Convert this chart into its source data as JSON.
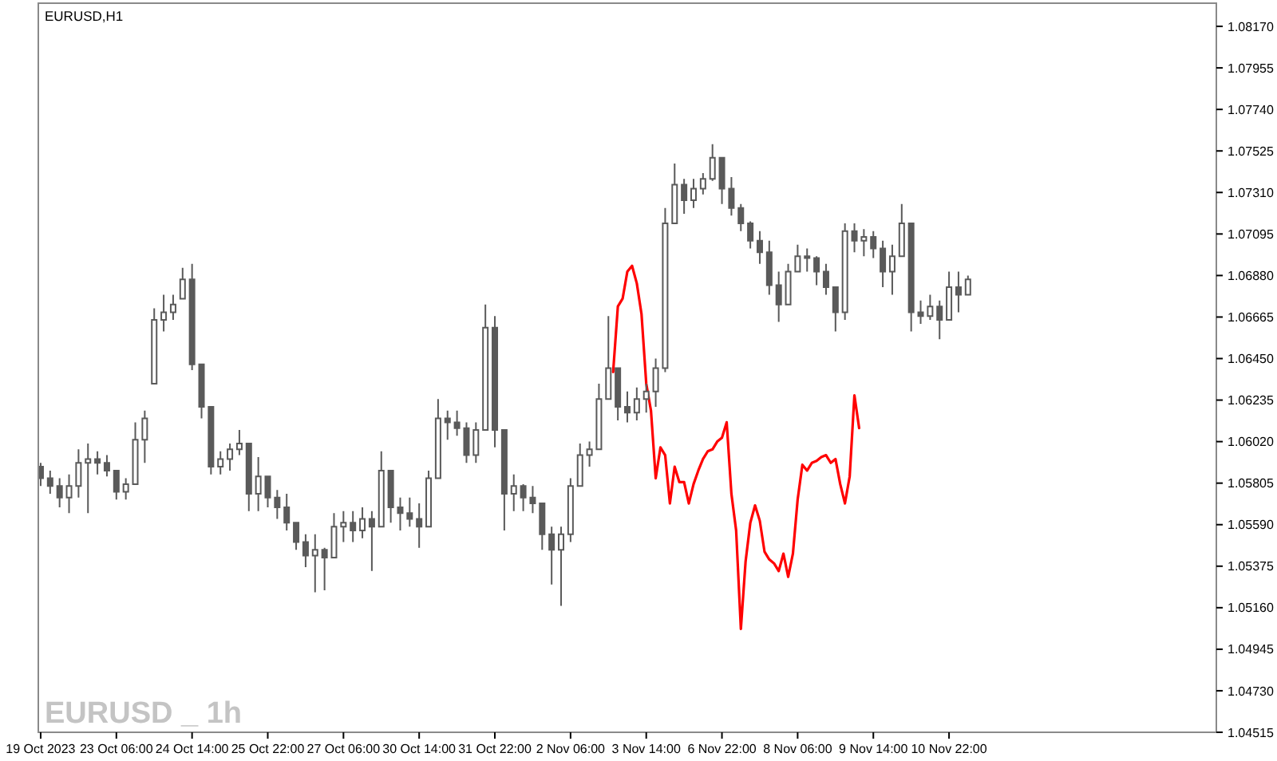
{
  "chart_data": {
    "type": "candlestick",
    "title": "EURUSD,H1",
    "annotations": [
      "EURUSD _ 1h"
    ],
    "categories": [
      "19 Oct 2023",
      null,
      null,
      null,
      null,
      null,
      null,
      null,
      null,
      null,
      null,
      null,
      null,
      null,
      null,
      null,
      "23 Oct 06:00",
      null,
      null,
      null,
      null,
      null,
      null,
      null,
      null,
      null,
      null,
      null,
      null,
      null,
      null,
      null,
      "24 Oct 14:00",
      null,
      null,
      null,
      null,
      null,
      null,
      null,
      null,
      null,
      null,
      null,
      null,
      null,
      null,
      null,
      "25 Oct 22:00",
      null,
      null,
      null,
      null,
      null,
      null,
      null,
      null,
      null,
      null,
      null,
      null,
      null,
      null,
      null,
      "27 Oct 06:00",
      null,
      null,
      null,
      null,
      null,
      null,
      null,
      null,
      null,
      null,
      null,
      null,
      null,
      null,
      null,
      "30 Oct 14:00",
      null,
      null,
      null,
      null,
      null,
      null,
      null,
      null,
      null,
      null,
      null,
      null,
      null,
      null,
      null,
      "31 Oct 22:00",
      null,
      null,
      null,
      null,
      null,
      null,
      null,
      null,
      null,
      null,
      null,
      null,
      null,
      null,
      null,
      "2 Nov 06:00",
      null,
      null,
      null,
      null,
      null,
      null,
      null,
      null,
      null,
      null,
      null,
      null,
      null,
      null,
      null,
      "3 Nov 14:00",
      null,
      null,
      null,
      null,
      null,
      null,
      null,
      null,
      null,
      null,
      null,
      null,
      null,
      null,
      null,
      "6 Nov 22:00",
      null,
      null,
      null,
      null,
      null,
      null,
      null,
      null,
      null,
      null,
      null,
      null,
      null,
      null,
      null,
      "8 Nov 06:00",
      null,
      null,
      null,
      null,
      null,
      null,
      null,
      null,
      null,
      null,
      null,
      null,
      null,
      null,
      null,
      "9 Nov 14:00",
      null,
      null,
      null,
      null,
      null,
      null,
      null,
      null,
      null,
      null,
      null,
      null,
      null,
      null,
      null,
      "10 Nov 22:00",
      null,
      null,
      null,
      null,
      null,
      null,
      null,
      null,
      null,
      null,
      null,
      null,
      null,
      null,
      null,
      null,
      null,
      null,
      null,
      null,
      null,
      null,
      null,
      null,
      null,
      null,
      null,
      null,
      null,
      null,
      null,
      null,
      null,
      null,
      null,
      null,
      null,
      null,
      null,
      null,
      null,
      null,
      null,
      null,
      null,
      null,
      null,
      null,
      null,
      null,
      null,
      null,
      null,
      null,
      null,
      null
    ],
    "ylim": [
      1.04515,
      1.0829
    ],
    "yticks": [
      1.04515,
      {
        "value": 1.0473,
        "label": "1.04730"
      },
      1.04945,
      {
        "value": 1.0516,
        "label": "1.05160"
      },
      1.05375,
      {
        "value": 1.0559,
        "label": "1.05590"
      },
      1.05805,
      {
        "value": 1.0602,
        "label": "1.06020"
      },
      1.06235,
      {
        "value": 1.0645,
        "label": "1.06450"
      },
      1.06665,
      {
        "value": 1.0688,
        "label": "1.06880"
      },
      1.07095,
      {
        "value": 1.0731,
        "label": "1.07310"
      },
      1.07525,
      {
        "value": 1.0774,
        "label": "1.07740"
      },
      1.07955,
      {
        "value": 1.0817,
        "label": "1.08170"
      }
    ],
    "series": [
      {
        "color": "#5a5a5a",
        "ohlc": [
          [
            1.0589,
            1.0591,
            1.0579,
            1.0583
          ],
          null,
          [
            1.0583,
            1.0587,
            1.0575,
            1.0579
          ],
          null,
          [
            1.0579,
            1.0583,
            1.0568,
            1.0573
          ],
          null,
          [
            1.0573,
            1.0585,
            1.0565,
            1.0579
          ],
          null,
          [
            1.0579,
            1.0598,
            1.0573,
            1.0591
          ],
          null,
          [
            1.0591,
            1.0601,
            1.0565,
            1.0593
          ],
          null,
          [
            1.0593,
            1.0597,
            1.0585,
            1.0591
          ],
          null,
          [
            1.0591,
            1.0595,
            1.0584,
            1.0587
          ],
          null,
          [
            1.0587,
            1.0587,
            1.0572,
            1.0576
          ],
          null,
          [
            1.0576,
            1.0583,
            1.0572,
            1.058
          ],
          null,
          [
            1.058,
            1.0612,
            1.058,
            1.0603
          ],
          null,
          [
            1.0603,
            1.0618,
            1.0591,
            1.0614
          ],
          null,
          [
            1.0632,
            1.0671,
            1.0632,
            1.0665
          ],
          null,
          [
            1.0665,
            1.0678,
            1.0659,
            1.0669
          ],
          null,
          [
            1.0669,
            1.0678,
            1.0665,
            1.0673
          ],
          null,
          [
            1.0676,
            1.0692,
            1.0676,
            1.0686
          ],
          null,
          [
            1.0686,
            1.0694,
            1.0639,
            1.0642
          ],
          null,
          [
            1.0642,
            1.0642,
            1.0614,
            1.062
          ],
          null,
          [
            1.062,
            1.062,
            1.0585,
            1.0589
          ],
          null,
          [
            1.0589,
            1.0597,
            1.0585,
            1.0593
          ],
          null,
          [
            1.0593,
            1.0601,
            1.0587,
            1.0598
          ],
          null,
          [
            1.0598,
            1.0608,
            1.0595,
            1.0601
          ],
          null,
          [
            1.0601,
            1.0601,
            1.0566,
            1.0575
          ],
          null,
          [
            1.0575,
            1.0594,
            1.0566,
            1.0584
          ],
          null,
          [
            1.0584,
            1.0584,
            1.0568,
            1.0573
          ],
          null,
          [
            1.0573,
            1.0577,
            1.0562,
            1.0568
          ],
          null,
          [
            1.0568,
            1.0575,
            1.0556,
            1.056
          ],
          null,
          [
            1.056,
            1.056,
            1.0546,
            1.055
          ],
          null,
          [
            1.055,
            1.0554,
            1.0537,
            1.0543
          ],
          null,
          [
            1.0543,
            1.0554,
            1.0524,
            1.0546
          ],
          null,
          [
            1.0546,
            1.0547,
            1.0525,
            1.0542
          ],
          null,
          [
            1.0542,
            1.0565,
            1.0542,
            1.0558
          ],
          null,
          [
            1.0558,
            1.0566,
            1.055,
            1.056
          ],
          null,
          [
            1.056,
            1.0566,
            1.055,
            1.0556
          ],
          null,
          [
            1.0556,
            1.0568,
            1.0552,
            1.0562
          ],
          null,
          [
            1.0562,
            1.0566,
            1.0535,
            1.0558
          ],
          null,
          [
            1.0558,
            1.0597,
            1.0558,
            1.0587
          ],
          null,
          [
            1.0587,
            1.0587,
            1.056,
            1.0568
          ],
          null,
          [
            1.0568,
            1.0573,
            1.0556,
            1.0565
          ],
          null,
          [
            1.0565,
            1.0573,
            1.0558,
            1.0562
          ],
          null,
          [
            1.0562,
            1.057,
            1.0547,
            1.0558
          ],
          null,
          [
            1.0558,
            1.0587,
            1.0558,
            1.0583
          ],
          null,
          [
            1.0583,
            1.0624,
            1.0583,
            1.0614
          ],
          null,
          [
            1.0614,
            1.0618,
            1.0603,
            1.0612
          ],
          null,
          [
            1.0612,
            1.0618,
            1.0605,
            1.0609
          ],
          null,
          [
            1.0609,
            1.0612,
            1.0591,
            1.0595
          ],
          null,
          [
            1.0595,
            1.0612,
            1.0591,
            1.0608
          ],
          null,
          [
            1.0608,
            1.0673,
            1.0608,
            1.0661
          ],
          null,
          [
            1.0661,
            1.0667,
            1.0599,
            1.0608
          ],
          null,
          [
            1.0608,
            1.0608,
            1.0556,
            1.0575
          ],
          null,
          [
            1.0575,
            1.0585,
            1.0566,
            1.0579
          ],
          null,
          [
            1.0579,
            1.058,
            1.0566,
            1.0573
          ],
          null,
          [
            1.0573,
            1.0579,
            1.0565,
            1.057
          ],
          null,
          [
            1.057,
            1.057,
            1.0546,
            1.0554
          ],
          null,
          [
            1.0554,
            1.0558,
            1.0528,
            1.0546
          ],
          null,
          [
            1.0546,
            1.0558,
            1.0517,
            1.0554
          ],
          null,
          [
            1.0554,
            1.0583,
            1.055,
            1.0579
          ],
          null,
          [
            1.0579,
            1.0601,
            1.0579,
            1.0595
          ],
          null,
          [
            1.0595,
            1.0602,
            1.0589,
            1.0598
          ],
          null,
          [
            1.0598,
            1.0632,
            1.0598,
            1.0624
          ],
          null,
          [
            1.0624,
            1.0667,
            1.0624,
            1.064
          ],
          null,
          [
            1.064,
            1.064,
            1.0613,
            1.062
          ],
          null,
          [
            1.062,
            1.0628,
            1.0612,
            1.0617
          ],
          null,
          [
            1.0617,
            1.063,
            1.0613,
            1.0624
          ],
          null,
          [
            1.0624,
            1.0632,
            1.0617,
            1.0628
          ],
          null,
          [
            1.0628,
            1.0645,
            1.062,
            1.064
          ],
          null,
          [
            1.064,
            1.0723,
            1.0638,
            1.0715
          ],
          null,
          [
            1.0715,
            1.0746,
            1.0715,
            1.0735
          ],
          null,
          [
            1.0735,
            1.0738,
            1.072,
            1.0727
          ],
          null,
          [
            1.0727,
            1.0738,
            1.0723,
            1.0733
          ],
          null,
          [
            1.0733,
            1.0741,
            1.073,
            1.0738
          ],
          null,
          [
            1.0738,
            1.0756,
            1.0737,
            1.0749
          ],
          null,
          [
            1.0749,
            1.0749,
            1.0725,
            1.0733
          ],
          null,
          [
            1.0733,
            1.0739,
            1.0719,
            1.0723
          ],
          null,
          [
            1.0723,
            1.0725,
            1.0711,
            1.0715
          ],
          null,
          [
            1.0715,
            1.0716,
            1.0702,
            1.0706
          ],
          null,
          [
            1.0706,
            1.0711,
            1.0694,
            1.07
          ],
          null,
          [
            1.07,
            1.0706,
            1.0678,
            1.0683
          ],
          null,
          [
            1.0683,
            1.069,
            1.0664,
            1.0673
          ],
          null,
          [
            1.0673,
            1.0694,
            1.0673,
            1.069
          ],
          null,
          [
            1.069,
            1.0704,
            1.069,
            1.0698
          ],
          null,
          [
            1.0698,
            1.0702,
            1.069,
            1.0697
          ],
          null,
          [
            1.0697,
            1.0698,
            1.0683,
            1.069
          ],
          null,
          [
            1.069,
            1.0694,
            1.0678,
            1.0682
          ],
          null,
          [
            1.0682,
            1.0682,
            1.0659,
            1.0669
          ],
          null,
          [
            1.0669,
            1.0715,
            1.0665,
            1.0711
          ],
          null,
          [
            1.0711,
            1.0715,
            1.07,
            1.0706
          ],
          null,
          [
            1.0706,
            1.0712,
            1.0698,
            1.0708
          ],
          null,
          [
            1.0708,
            1.0711,
            1.0697,
            1.0702
          ],
          null,
          [
            1.0702,
            1.0706,
            1.0682,
            1.069
          ],
          null,
          [
            1.069,
            1.0704,
            1.0678,
            1.0698
          ],
          null,
          [
            1.0698,
            1.0725,
            1.0698,
            1.0715
          ],
          null,
          [
            1.0715,
            1.0715,
            1.0659,
            1.0669
          ],
          null,
          [
            1.0669,
            1.0675,
            1.0663,
            1.0667
          ],
          null,
          [
            1.0667,
            1.0678,
            1.0665,
            1.0672
          ],
          null,
          [
            1.0672,
            1.0675,
            1.0655,
            1.0665
          ],
          null,
          [
            1.0665,
            1.069,
            1.0665,
            1.0682
          ],
          null,
          [
            1.0682,
            1.069,
            1.0669,
            1.0678
          ],
          null,
          [
            1.0678,
            1.0688,
            1.0678,
            1.0686
          ],
          null,
          null,
          null,
          null,
          null,
          null,
          null,
          null,
          null,
          null,
          null,
          null,
          null,
          null,
          null,
          null,
          null,
          null,
          null,
          null,
          null,
          null,
          null,
          null,
          null,
          null,
          null,
          null,
          null,
          null,
          null,
          null,
          null,
          null,
          null,
          null,
          null,
          null,
          null,
          null,
          null,
          null,
          null,
          null,
          null,
          null,
          null,
          null,
          null,
          null,
          null,
          null
        ]
      },
      {
        "type": "line",
        "color": "#ff0000",
        "values": [
          null,
          null,
          null,
          null,
          null,
          null,
          null,
          null,
          null,
          null,
          null,
          null,
          null,
          null,
          null,
          null,
          null,
          null,
          null,
          null,
          null,
          null,
          null,
          null,
          null,
          null,
          null,
          null,
          null,
          null,
          null,
          null,
          null,
          null,
          null,
          null,
          null,
          null,
          null,
          null,
          null,
          null,
          null,
          null,
          null,
          null,
          null,
          null,
          null,
          null,
          null,
          null,
          null,
          null,
          null,
          null,
          null,
          null,
          null,
          null,
          null,
          null,
          null,
          null,
          null,
          null,
          null,
          null,
          null,
          null,
          null,
          null,
          null,
          null,
          null,
          null,
          null,
          null,
          null,
          null,
          null,
          null,
          null,
          null,
          null,
          null,
          null,
          null,
          null,
          null,
          null,
          null,
          null,
          null,
          null,
          null,
          null,
          null,
          null,
          null,
          null,
          null,
          null,
          null,
          null,
          null,
          null,
          null,
          null,
          null,
          null,
          null,
          null,
          null,
          null,
          null,
          null,
          null,
          null,
          null,
          null,
          1.0638,
          1.0672,
          1.0676,
          1.069,
          1.0693,
          1.0684,
          1.0668,
          1.0632,
          1.0618,
          1.0583,
          1.0599,
          1.0595,
          1.057,
          1.0589,
          1.0581,
          1.0581,
          1.057,
          1.058,
          1.0587,
          1.0593,
          1.0597,
          1.0598,
          1.0602,
          1.0604,
          1.0612,
          1.0575,
          1.0556,
          1.0505,
          1.054,
          1.056,
          1.0569,
          1.0561,
          1.0545,
          1.0541,
          1.0539,
          1.0535,
          1.0544,
          1.0532,
          1.0544,
          1.0572,
          1.059,
          1.0587,
          1.0591,
          1.0592,
          1.0594,
          1.0595,
          1.0591,
          1.0593,
          1.058,
          1.057,
          1.0584,
          1.0626,
          1.0609,
          null,
          null,
          null,
          null,
          null,
          null,
          null,
          null,
          null,
          null,
          null,
          null,
          null,
          null,
          null,
          null,
          null,
          null,
          null,
          null,
          null,
          null,
          null,
          null,
          null,
          null,
          null,
          null,
          null,
          null,
          null,
          null,
          null,
          null,
          null,
          null,
          null,
          null,
          null,
          null,
          null,
          null,
          null,
          null,
          null,
          null,
          null,
          null,
          null,
          null,
          null,
          null,
          null,
          null,
          null,
          null,
          null,
          null,
          null,
          null,
          null,
          null,
          null,
          null,
          null,
          null,
          null,
          null,
          null,
          null,
          null,
          null,
          null,
          null,
          null
        ]
      }
    ]
  }
}
